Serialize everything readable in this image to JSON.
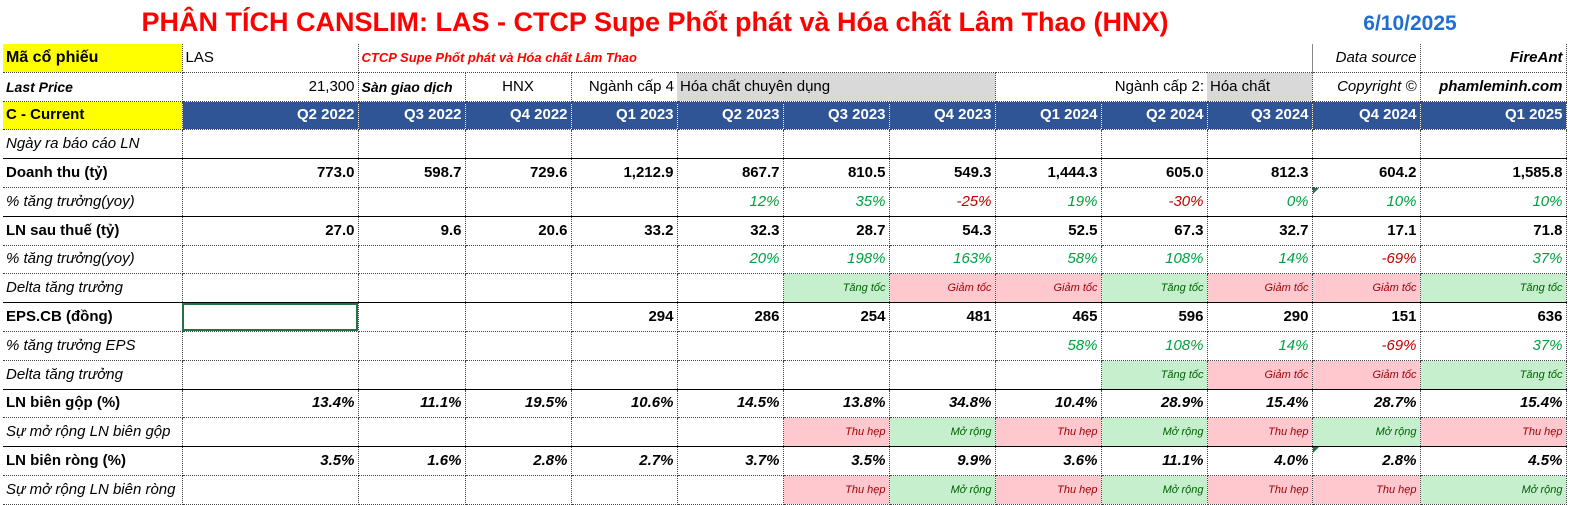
{
  "title": "PHÂN TÍCH CANSLIM: LAS - CTCP Supe Phốt phát và Hóa chất Lâm Thao (HNX)",
  "date": "6/10/2025",
  "info": {
    "code_label": "Mã cổ phiếu",
    "code_value": "LAS",
    "company": "CTCP Supe Phốt phát và Hóa chất Lâm Thao",
    "data_source_label": "Data source",
    "data_source_value": "FireAnt",
    "last_price_label": "Last Price",
    "last_price_value": "21,300",
    "exchange_label": "Sàn giao dịch",
    "exchange_value": "HNX",
    "industry4_label": "Ngành cấp 4",
    "industry4_value": "Hóa chất chuyên dụng",
    "industry2_label": "Ngành cấp 2:",
    "industry2_value": "Hóa chất",
    "copyright_label": "Copyright ©",
    "copyright_value": "phamleminh.com"
  },
  "header": {
    "label": "C - Current",
    "quarters": [
      "Q2 2022",
      "Q3 2022",
      "Q4 2022",
      "Q1 2023",
      "Q2 2023",
      "Q3 2023",
      "Q4 2023",
      "Q1 2024",
      "Q2 2024",
      "Q3 2024",
      "Q4 2024",
      "Q1 2025"
    ]
  },
  "rows": [
    {
      "label": "Ngày ra báo cáo LN",
      "values": [
        "",
        "",
        "",
        "",
        "",
        "",
        "",
        "",
        "",
        "",
        "",
        ""
      ]
    },
    {
      "label": "Doanh thu (tỷ)",
      "values": [
        "773.0",
        "598.7",
        "729.6",
        "1,212.9",
        "867.7",
        "810.5",
        "549.3",
        "1,444.3",
        "605.0",
        "812.3",
        "604.2",
        "1,585.8"
      ]
    },
    {
      "label": "% tăng trưởng(yoy)",
      "values": [
        "",
        "",
        "",
        "",
        "12%",
        "35%",
        "-25%",
        "19%",
        "-30%",
        "0%",
        "10%",
        "10%"
      ]
    },
    {
      "label": "LN sau thuế (tỷ)",
      "values": [
        "27.0",
        "9.6",
        "20.6",
        "33.2",
        "32.3",
        "28.7",
        "54.3",
        "52.5",
        "67.3",
        "32.7",
        "17.1",
        "71.8"
      ]
    },
    {
      "label": "% tăng trưởng(yoy)",
      "values": [
        "",
        "",
        "",
        "",
        "20%",
        "198%",
        "163%",
        "58%",
        "108%",
        "14%",
        "-69%",
        "37%"
      ]
    },
    {
      "label": "Delta tăng trưởng",
      "values": [
        "",
        "",
        "",
        "",
        "",
        "Tăng tốc",
        "Giảm tốc",
        "Giảm tốc",
        "Tăng tốc",
        "Giảm tốc",
        "Giảm tốc",
        "Tăng tốc"
      ]
    },
    {
      "label": "EPS.CB (đồng)",
      "values": [
        "",
        "",
        "",
        "294",
        "286",
        "254",
        "481",
        "465",
        "596",
        "290",
        "151",
        "636"
      ]
    },
    {
      "label": "% tăng trưởng EPS",
      "values": [
        "",
        "",
        "",
        "",
        "",
        "",
        "",
        "58%",
        "108%",
        "14%",
        "-69%",
        "37%"
      ]
    },
    {
      "label": "Delta tăng trưởng",
      "values": [
        "",
        "",
        "",
        "",
        "",
        "",
        "",
        "",
        "Tăng tốc",
        "Giảm tốc",
        "Giảm tốc",
        "Tăng tốc"
      ]
    },
    {
      "label": "LN biên gộp (%)",
      "values": [
        "13.4%",
        "11.1%",
        "19.5%",
        "10.6%",
        "14.5%",
        "13.8%",
        "34.8%",
        "10.4%",
        "28.9%",
        "15.4%",
        "28.7%",
        "15.4%"
      ]
    },
    {
      "label": "Sự mở rộng LN biên gộp",
      "values": [
        "",
        "",
        "",
        "",
        "",
        "Thu hẹp",
        "Mở rộng",
        "Thu hẹp",
        "Mở rộng",
        "Thu hẹp",
        "Mở rộng",
        "Thu hẹp"
      ]
    },
    {
      "label": "LN biên ròng (%)",
      "values": [
        "3.5%",
        "1.6%",
        "2.8%",
        "2.7%",
        "3.7%",
        "3.5%",
        "9.9%",
        "3.6%",
        "11.1%",
        "4.0%",
        "2.8%",
        "4.5%"
      ]
    },
    {
      "label": "Sự mở rộng LN biên ròng",
      "values": [
        "",
        "",
        "",
        "",
        "",
        "Thu hẹp",
        "Mở rộng",
        "Thu hẹp",
        "Mở rộng",
        "Thu hẹp",
        "Thu hẹp",
        "Mở rộng"
      ]
    }
  ]
}
